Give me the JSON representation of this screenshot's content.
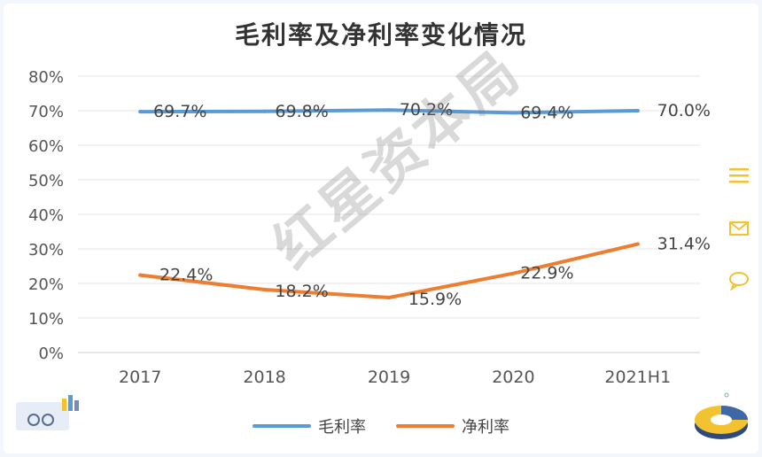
{
  "chart_data": {
    "type": "line",
    "title": "毛利率及净利率变化情况",
    "categories": [
      "2017",
      "2018",
      "2019",
      "2020",
      "2021H1"
    ],
    "y_ticks": [
      "0%",
      "10%",
      "20%",
      "30%",
      "40%",
      "50%",
      "60%",
      "70%",
      "80%"
    ],
    "ylim": [
      0,
      80
    ],
    "grid": true,
    "legend_position": "bottom",
    "series": [
      {
        "name": "毛利率",
        "color": "#5b9bd5",
        "values": [
          69.7,
          69.8,
          70.2,
          69.4,
          70.0
        ],
        "labels": [
          "69.7%",
          "69.8%",
          "70.2%",
          "69.4%",
          "70.0%"
        ]
      },
      {
        "name": "净利率",
        "color": "#ed7d31",
        "values": [
          22.4,
          18.2,
          15.9,
          22.9,
          31.4
        ],
        "labels": [
          "22.4%",
          "18.2%",
          "15.9%",
          "22.9%",
          "31.4%"
        ]
      }
    ]
  },
  "watermark": "红星资本局",
  "icons": [
    "menu-icon",
    "mail-icon",
    "chat-icon"
  ]
}
